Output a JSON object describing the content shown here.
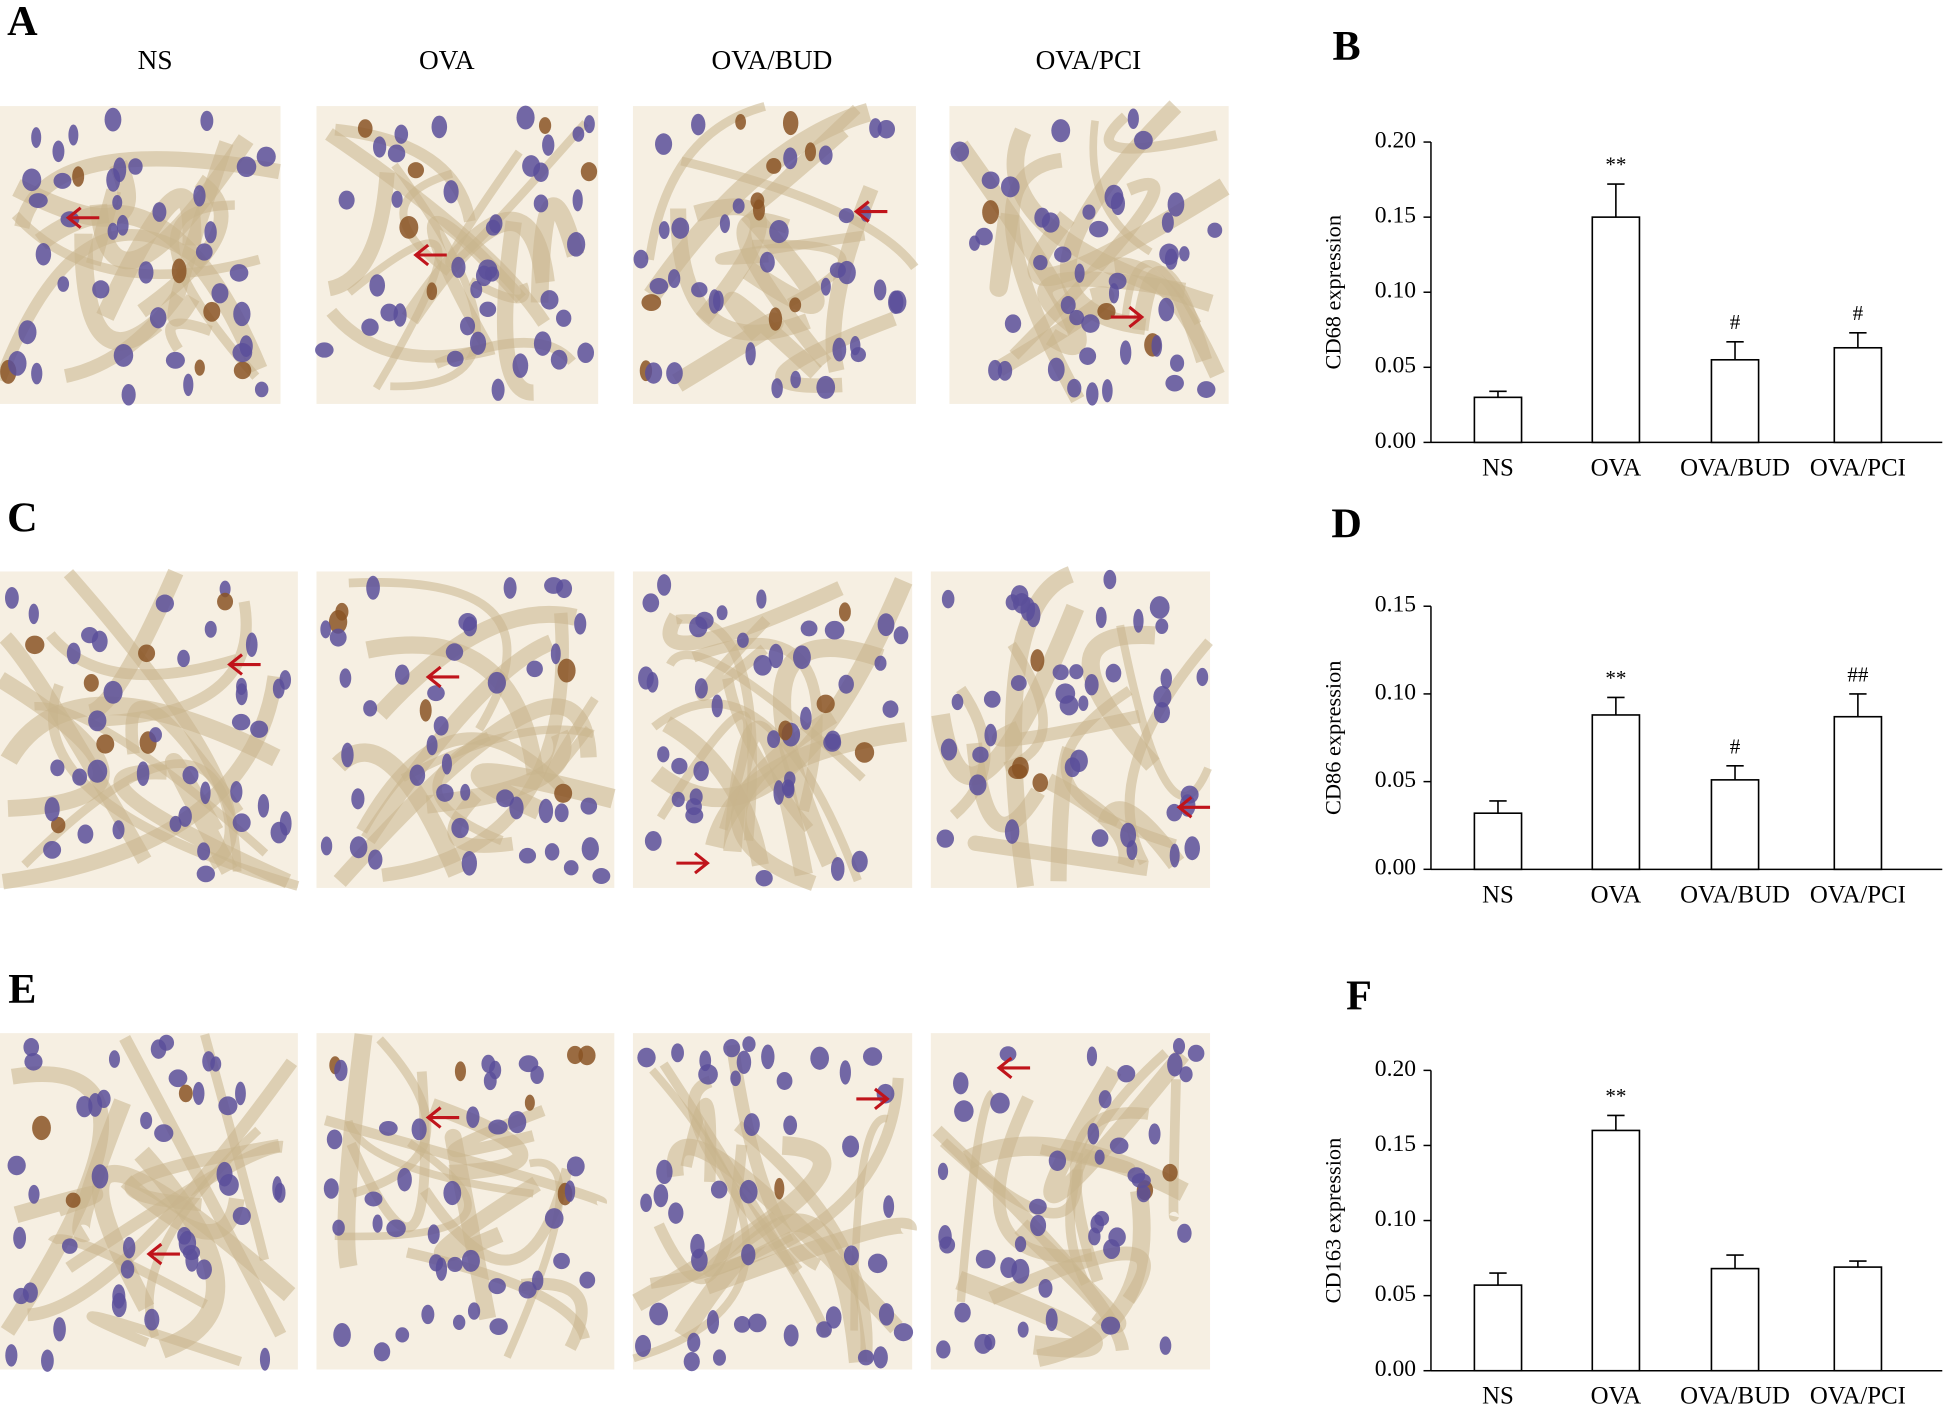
{
  "figure": {
    "image_panel_letters": [
      "A",
      "C",
      "E"
    ],
    "image_columns": [
      "NS",
      "OVA",
      "OVA/BUD",
      "OVA/PCI"
    ]
  },
  "chart_data": [
    {
      "type": "bar",
      "label": "B",
      "y_label": "CD68 expression",
      "categories": [
        "NS",
        "OVA",
        "OVA/BUD",
        "OVA/PCI"
      ],
      "values": [
        0.03,
        0.15,
        0.055,
        0.063
      ],
      "errors": [
        0.004,
        0.022,
        0.012,
        0.01
      ],
      "annotations": [
        null,
        "**",
        "#",
        "#"
      ],
      "color": "#ffffff",
      "edgecolor": "#000000",
      "ylim": [
        0,
        0.2
      ],
      "yticks": [
        {
          "value": 0,
          "label": "0.00"
        },
        {
          "value": 0.05,
          "label": "0.05"
        },
        {
          "value": 0.1,
          "label": "0.10"
        },
        {
          "value": 0.15,
          "label": "0.15"
        },
        {
          "value": 0.2,
          "label": "0.20"
        }
      ]
    },
    {
      "type": "bar",
      "label": "D",
      "y_label": "CD86 expression",
      "categories": [
        "NS",
        "OVA",
        "OVA/BUD",
        "OVA/PCI"
      ],
      "values": [
        0.032,
        0.088,
        0.051,
        0.087
      ],
      "errors": [
        0.007,
        0.01,
        0.008,
        0.013
      ],
      "annotations": [
        null,
        "**",
        "#",
        "##"
      ],
      "color": "#ffffff",
      "edgecolor": "#000000",
      "ylim": [
        0,
        0.15
      ],
      "yticks": [
        {
          "value": 0,
          "label": "0.00"
        },
        {
          "value": 0.05,
          "label": "0.05"
        },
        {
          "value": 0.1,
          "label": "0.10"
        },
        {
          "value": 0.15,
          "label": "0.15"
        }
      ]
    },
    {
      "type": "bar",
      "label": "F",
      "y_label": "CD163 expression",
      "categories": [
        "NS",
        "OVA",
        "OVA/BUD",
        "OVA/PCI"
      ],
      "values": [
        0.057,
        0.16,
        0.068,
        0.069
      ],
      "errors": [
        0.008,
        0.01,
        0.009,
        0.004
      ],
      "annotations": [
        null,
        "**",
        null,
        null
      ],
      "color": "#ffffff",
      "edgecolor": "#000000",
      "ylim": [
        0,
        0.2
      ],
      "yticks": [
        {
          "value": 0,
          "label": "0.00"
        },
        {
          "value": 0.05,
          "label": "0.05"
        },
        {
          "value": 0.1,
          "label": "0.10"
        },
        {
          "value": 0.15,
          "label": "0.15"
        },
        {
          "value": 0.2,
          "label": "0.20"
        }
      ]
    }
  ]
}
